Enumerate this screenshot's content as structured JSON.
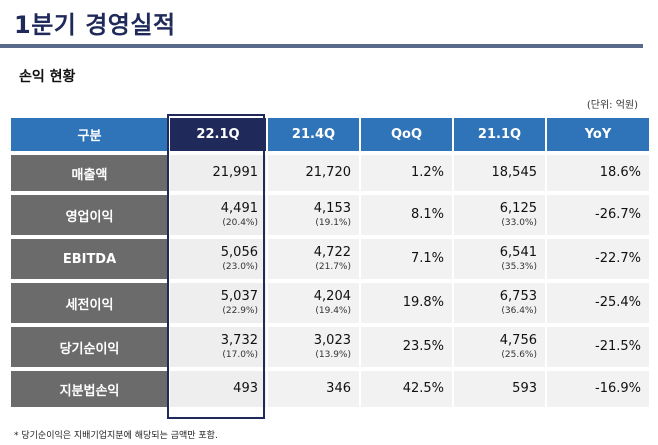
{
  "page_title": "1분기 경영실적",
  "section_title": "손익 현황",
  "unit_note": "(단위: 억원)",
  "colors": {
    "header_bg": "#2f74b8",
    "current_header_bg": "#1f2a5a",
    "label_bg": "#6b6b6b",
    "cell_bg": "#f2f2f2"
  },
  "table": {
    "headers": [
      "구분",
      "22.1Q",
      "21.4Q",
      "QoQ",
      "21.1Q",
      "YoY"
    ],
    "rows": [
      {
        "label": "매출액",
        "q22_1": "21,991",
        "q22_1_pct": "",
        "q21_4": "21,720",
        "q21_4_pct": "",
        "qoq": "1.2%",
        "q21_1": "18,545",
        "q21_1_pct": "",
        "yoy": "18.6%"
      },
      {
        "label": "영업이익",
        "q22_1": "4,491",
        "q22_1_pct": "(20.4%)",
        "q21_4": "4,153",
        "q21_4_pct": "(19.1%)",
        "qoq": "8.1%",
        "q21_1": "6,125",
        "q21_1_pct": "(33.0%)",
        "yoy": "-26.7%"
      },
      {
        "label": "EBITDA",
        "q22_1": "5,056",
        "q22_1_pct": "(23.0%)",
        "q21_4": "4,722",
        "q21_4_pct": "(21.7%)",
        "qoq": "7.1%",
        "q21_1": "6,541",
        "q21_1_pct": "(35.3%)",
        "yoy": "-22.7%"
      },
      {
        "label": "세전이익",
        "q22_1": "5,037",
        "q22_1_pct": "(22.9%)",
        "q21_4": "4,204",
        "q21_4_pct": "(19.4%)",
        "qoq": "19.8%",
        "q21_1": "6,753",
        "q21_1_pct": "(36.4%)",
        "yoy": "-25.4%"
      },
      {
        "label": "당기순이익",
        "q22_1": "3,732",
        "q22_1_pct": "(17.0%)",
        "q21_4": "3,023",
        "q21_4_pct": "(13.9%)",
        "qoq": "23.5%",
        "q21_1": "4,756",
        "q21_1_pct": "(25.6%)",
        "yoy": "-21.5%"
      },
      {
        "label": "지분법손익",
        "q22_1": "493",
        "q22_1_pct": "",
        "q21_4": "346",
        "q21_4_pct": "",
        "qoq": "42.5%",
        "q21_1": "593",
        "q21_1_pct": "",
        "yoy": "-16.9%"
      }
    ]
  },
  "footnote": "* 당기순이익은 지배기업지분에 해당되는 금액만 포함."
}
